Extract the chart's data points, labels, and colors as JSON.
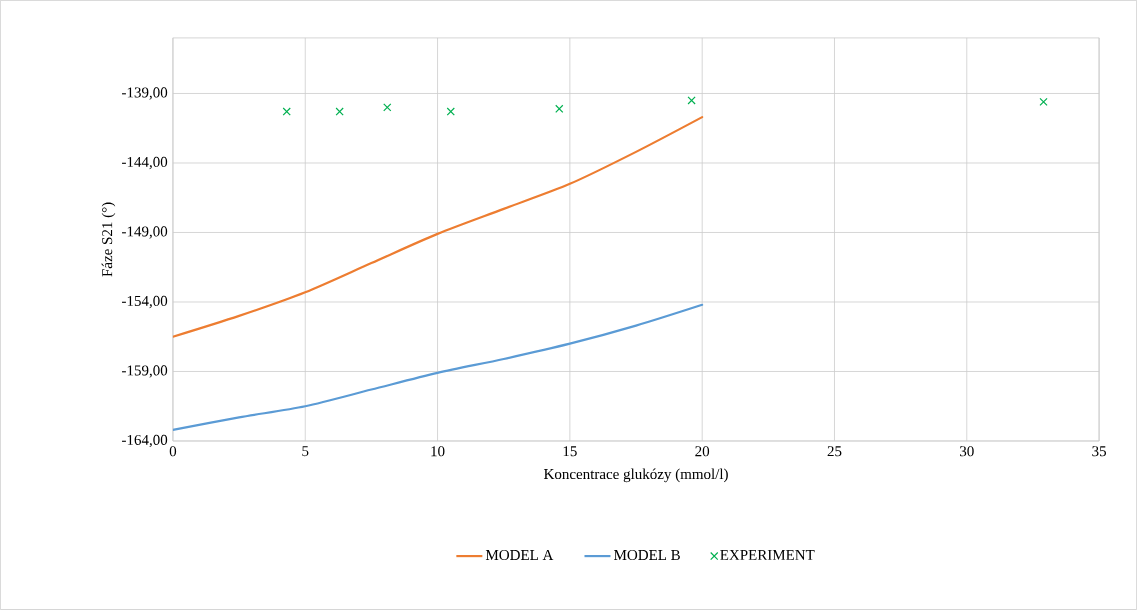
{
  "chart_data": {
    "type": "line",
    "xlabel": "Koncentrace glukózy (mmol/l)",
    "ylabel": "Fáze S21 (°)",
    "xlim": [
      0,
      35
    ],
    "xticks": [
      0,
      5,
      10,
      15,
      20,
      25,
      30,
      35
    ],
    "ylim": [
      -164,
      -135
    ],
    "yticks": [
      {
        "value": -164,
        "label": "-164,00"
      },
      {
        "value": -159,
        "label": "-159,00"
      },
      {
        "value": -154,
        "label": "-154,00"
      },
      {
        "value": -149,
        "label": "-149,00"
      },
      {
        "value": -144,
        "label": "-144,00"
      },
      {
        "value": -139,
        "label": "-139,00"
      }
    ],
    "grid": true,
    "legend": "bottom",
    "line_style": "solid",
    "series": [
      {
        "name": "MODEL A",
        "color": "#ed7d31",
        "x": [
          0,
          2.5,
          5,
          7.5,
          10,
          12.5,
          15,
          17.5,
          20
        ],
        "values": [
          -156.5,
          -155.0,
          -153.3,
          -151.2,
          -149.1,
          -147.3,
          -145.5,
          -143.2,
          -140.7
        ]
      },
      {
        "name": "MODEL B",
        "color": "#5b9bd5",
        "x": [
          0,
          2.5,
          5,
          7.5,
          10,
          12.5,
          15,
          17.5,
          20
        ],
        "values": [
          -163.2,
          -162.3,
          -161.5,
          -160.3,
          -159.1,
          -158.1,
          -157.0,
          -155.7,
          -154.2
        ]
      },
      {
        "name": "EXPERIMENT",
        "type": "scatter",
        "marker": "cross",
        "color": "#00b050",
        "x": [
          4.3,
          6.3,
          8.1,
          10.5,
          14.6,
          19.6,
          32.9
        ],
        "values": [
          -140.3,
          -140.3,
          -140.0,
          -140.3,
          -140.1,
          -139.5,
          -139.6
        ]
      }
    ]
  }
}
